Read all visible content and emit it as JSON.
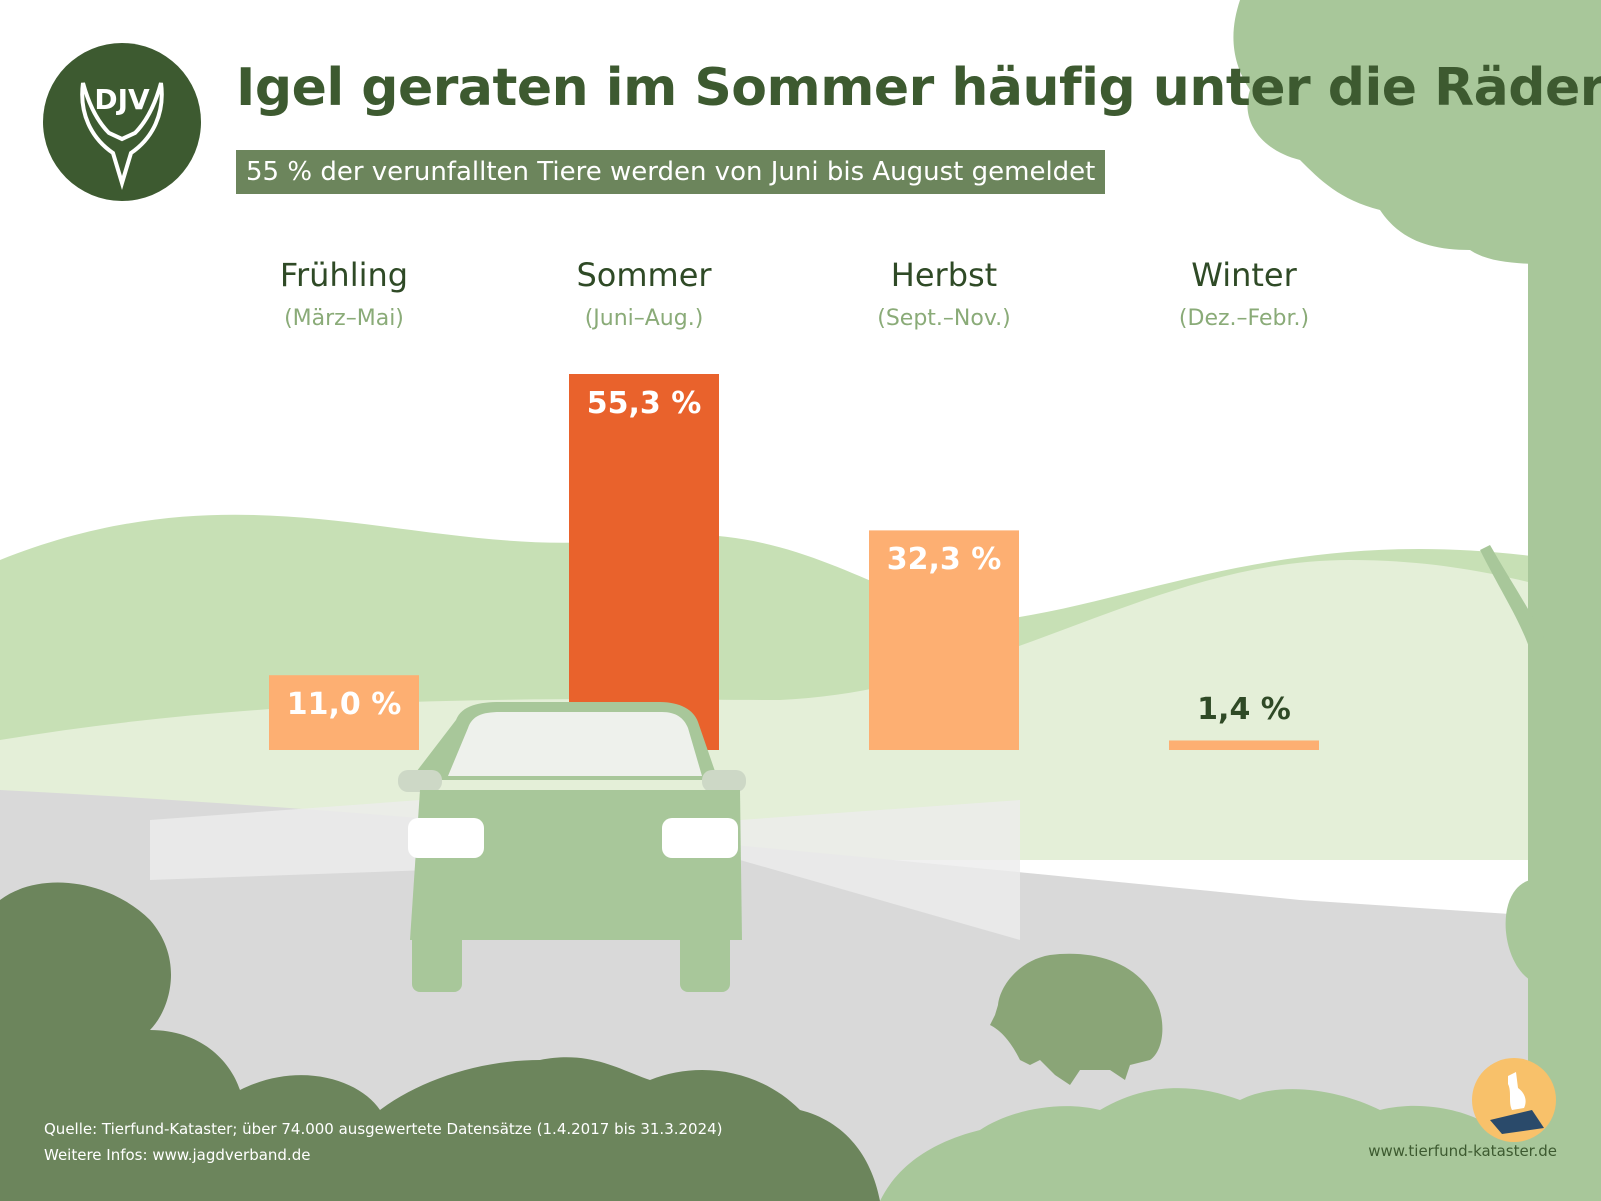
{
  "header": {
    "title": "Igel geraten im Sommer häufig unter die Räder",
    "subtitle": "55 % der verunfallten Tiere werden von Juni bis August gemeldet"
  },
  "logo": {
    "text": "DJV",
    "icon": "stag-antler-icon"
  },
  "seasons": [
    {
      "name": "Frühling",
      "range": "(März–Mai)"
    },
    {
      "name": "Sommer",
      "range": "(Juni–Aug.)"
    },
    {
      "name": "Herbst",
      "range": "(Sept.–Nov.)"
    },
    {
      "name": "Winter",
      "range": "(Dez.–Febr.)"
    }
  ],
  "chart_data": {
    "type": "bar",
    "categories": [
      "Frühling",
      "Sommer",
      "Herbst",
      "Winter"
    ],
    "values": [
      11.0,
      55.3,
      32.3,
      1.4
    ],
    "value_labels": [
      "11,0 %",
      "55,3 %",
      "32,3 %",
      "1,4 %"
    ],
    "unit": "%",
    "ylim": [
      0,
      55.3
    ],
    "grid": false,
    "colors": [
      "#fdaf72",
      "#e9622c",
      "#fdaf72",
      "#fdaf72"
    ],
    "label_colors": [
      "#ffffff",
      "#ffffff",
      "#ffffff",
      "#2f4a26"
    ]
  },
  "footer": {
    "source": "Quelle: Tierfund-Kataster; über 74.000 ausgewertete Datensätze (1.4.2017 bis 31.3.2024)",
    "info": "Weitere Infos: www.jagdverband.de",
    "website": "www.tierfund-kataster.de"
  },
  "illustration": {
    "icons": [
      "tree-icon",
      "car-icon",
      "hedgehog-icon",
      "deer-badge-icon"
    ],
    "colors": {
      "dark_green": "#6c855c",
      "mid_green": "#a8c79a",
      "light_green": "#c7e0b5",
      "pale_green": "#e4efd8",
      "road": "#d9d9d9",
      "title_green": "#3d5a30"
    }
  }
}
